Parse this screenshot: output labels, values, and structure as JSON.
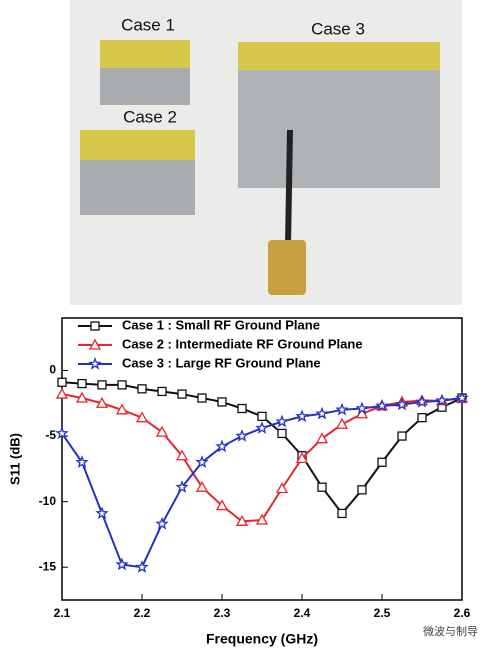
{
  "photo_labels": [
    "Case 1",
    "Case 2",
    "Case 3"
  ],
  "watermark": "微波与制导",
  "chart_data": {
    "type": "line",
    "x_label": "Frequency (GHz)",
    "y_label": "S11 (dB)",
    "x": [
      2.1,
      2.125,
      2.15,
      2.175,
      2.2,
      2.225,
      2.25,
      2.275,
      2.3,
      2.325,
      2.35,
      2.375,
      2.4,
      2.425,
      2.45,
      2.475,
      2.5,
      2.525,
      2.55,
      2.575,
      2.6
    ],
    "xlim": [
      2.1,
      2.6
    ],
    "xticks": [
      2.1,
      2.2,
      2.3,
      2.4,
      2.5,
      2.6
    ],
    "ylim": [
      -17.5,
      4
    ],
    "yticks": [
      0,
      -5,
      -10,
      -15
    ],
    "legend": "upper left",
    "series": [
      {
        "name": "Case 1 : Small RF Ground Plane",
        "color": "#111111",
        "marker": "square",
        "values": [
          -0.9,
          -1.0,
          -1.1,
          -1.1,
          -1.4,
          -1.6,
          -1.8,
          -2.1,
          -2.4,
          -2.9,
          -3.5,
          -4.8,
          -6.5,
          -8.9,
          -10.9,
          -9.1,
          -7.0,
          -5.0,
          -3.6,
          -2.8,
          -2.1
        ]
      },
      {
        "name": "Case 2 : Intermediate RF Ground Plane",
        "color": "#e8262a",
        "marker": "triangle",
        "values": [
          -1.8,
          -2.1,
          -2.5,
          -3.0,
          -3.6,
          -4.7,
          -6.5,
          -8.9,
          -10.3,
          -11.5,
          -11.4,
          -9.0,
          -6.7,
          -5.2,
          -4.1,
          -3.3,
          -2.7,
          -2.4,
          -2.3,
          -2.3,
          -2.1
        ]
      },
      {
        "name": "Case 3 : Large RF Ground Plane",
        "color": "#2030c8",
        "marker": "star",
        "values": [
          -4.8,
          -7.0,
          -10.9,
          -14.8,
          -15.0,
          -11.7,
          -8.9,
          -7.0,
          -5.8,
          -5.0,
          -4.4,
          -3.9,
          -3.5,
          -3.3,
          -3.0,
          -2.9,
          -2.7,
          -2.6,
          -2.4,
          -2.3,
          -2.1
        ]
      }
    ]
  }
}
